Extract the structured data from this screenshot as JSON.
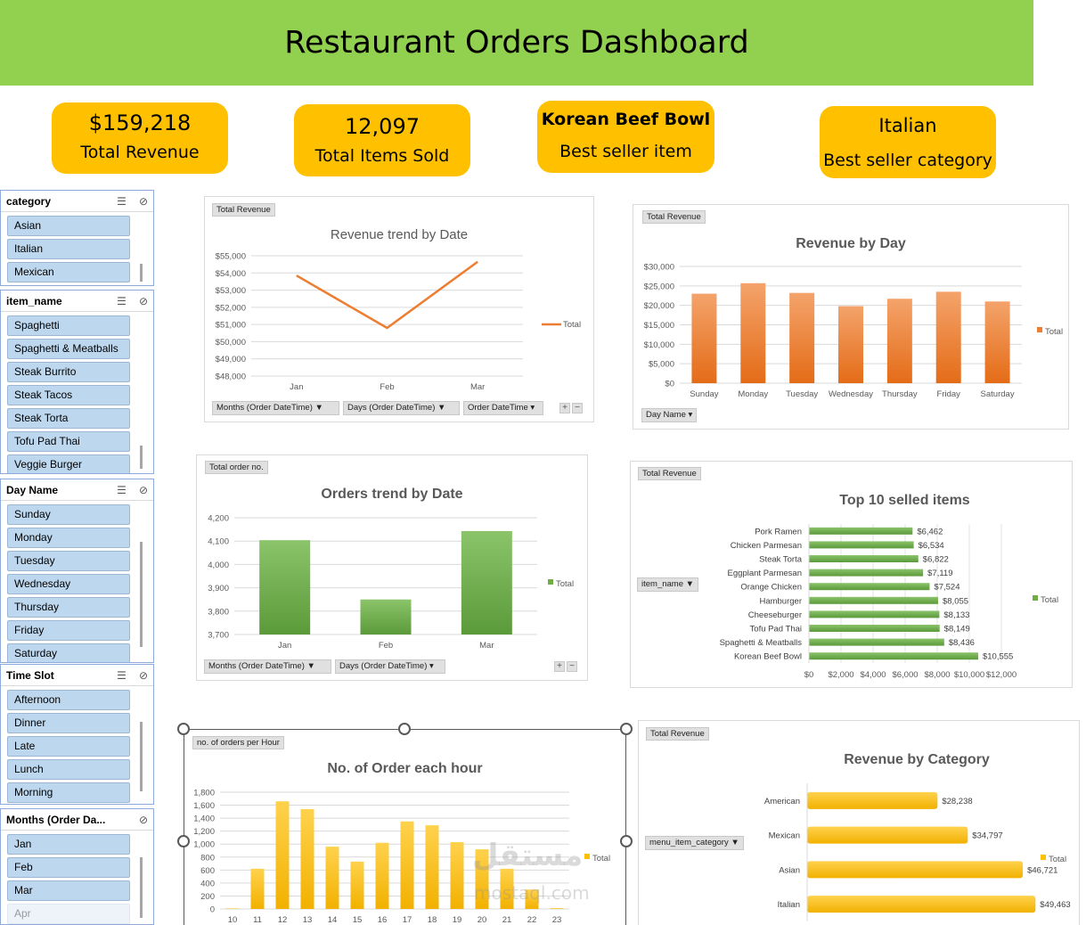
{
  "header": {
    "title": "Restaurant Orders Dashboard"
  },
  "kpis": [
    {
      "value": "$159,218",
      "label": "Total Revenue"
    },
    {
      "value": "12,097",
      "label": "Total Items Sold"
    },
    {
      "value": "Korean Beef Bowl",
      "label": "Best seller item"
    },
    {
      "value": "Italian",
      "label": "Best seller category"
    }
  ],
  "slicers": [
    {
      "title": "category",
      "items": [
        "Asian",
        "Italian",
        "Mexican"
      ]
    },
    {
      "title": "item_name",
      "items": [
        "Spaghetti",
        "Spaghetti & Meatballs",
        "Steak Burrito",
        "Steak Tacos",
        "Steak Torta",
        "Tofu Pad Thai",
        "Veggie Burger"
      ]
    },
    {
      "title": "Day Name",
      "items": [
        "Sunday",
        "Monday",
        "Tuesday",
        "Wednesday",
        "Thursday",
        "Friday",
        "Saturday"
      ]
    },
    {
      "title": "Time Slot",
      "items": [
        "Afternoon",
        "Dinner",
        "Late",
        "Lunch",
        "Morning"
      ]
    },
    {
      "title": "Months (Order Da...",
      "items": [
        "Jan",
        "Feb",
        "Mar",
        "Apr"
      ]
    }
  ],
  "panels": {
    "trend_revenue": {
      "field": "Total Revenue",
      "filters": [
        "Months (Order DateTime)",
        "Days (Order DateTime)",
        "Order DateTime"
      ]
    },
    "revenue_day": {
      "field": "Total Revenue",
      "filters": [
        "Day Name"
      ]
    },
    "orders_trend": {
      "field": "Total order no.",
      "filters": [
        "Months (Order DateTime)",
        "Days (Order DateTime)"
      ]
    },
    "top10": {
      "field": "Total Revenue",
      "filters": [
        "item_name"
      ]
    },
    "orders_hour": {
      "field": "no. of orders per Hour",
      "filters": []
    },
    "rev_category": {
      "field": "Total Revenue",
      "filters": [
        "menu_item_category"
      ]
    }
  },
  "watermark": {
    "text": "mostaql.com",
    "arabic": "مستقل"
  },
  "chart_data": [
    {
      "id": "revenue-trend",
      "type": "line",
      "title": "Revenue trend by Date",
      "categories": [
        "Jan",
        "Feb",
        "Mar"
      ],
      "series": [
        {
          "name": "Total",
          "values": [
            53850,
            50800,
            54650
          ]
        }
      ],
      "ylim": [
        48000,
        55000
      ],
      "yticks": [
        "$48,000",
        "$49,000",
        "$50,000",
        "$51,000",
        "$52,000",
        "$53,000",
        "$54,000",
        "$55,000"
      ],
      "legend": "right",
      "color": "#ed7d31"
    },
    {
      "id": "revenue-by-day",
      "type": "bar",
      "title": "Revenue by Day",
      "categories": [
        "Sunday",
        "Monday",
        "Tuesday",
        "Wednesday",
        "Thursday",
        "Friday",
        "Saturday"
      ],
      "series": [
        {
          "name": "Total",
          "values": [
            23000,
            25700,
            23200,
            19800,
            21700,
            23500,
            21000
          ]
        }
      ],
      "ylim": [
        0,
        30000
      ],
      "yticks": [
        "$0",
        "$5,000",
        "$10,000",
        "$15,000",
        "$20,000",
        "$25,000",
        "$30,000"
      ],
      "legend": "right",
      "color": "#ed7d31"
    },
    {
      "id": "orders-trend",
      "type": "bar",
      "title": "Orders trend by Date",
      "categories": [
        "Jan",
        "Feb",
        "Mar"
      ],
      "series": [
        {
          "name": "Total",
          "values": [
            4104,
            3850,
            4143
          ]
        }
      ],
      "ylim": [
        3700,
        4200
      ],
      "yticks": [
        "3,700",
        "3,800",
        "3,900",
        "4,000",
        "4,100",
        "4,200"
      ],
      "legend": "right",
      "color": "#70ad47"
    },
    {
      "id": "top10-items",
      "type": "bar",
      "orientation": "horizontal",
      "title": "Top 10 selled items",
      "categories": [
        "Pork Ramen",
        "Chicken Parmesan",
        "Steak Torta",
        "Eggplant Parmesan",
        "Orange Chicken",
        "Hamburger",
        "Cheeseburger",
        "Tofu Pad Thai",
        "Spaghetti & Meatballs",
        "Korean Beef Bowl"
      ],
      "series": [
        {
          "name": "Total",
          "values": [
            6462,
            6534,
            6822,
            7119,
            7524,
            8055,
            8133,
            8149,
            8436,
            10555
          ]
        }
      ],
      "data_labels": [
        "$6,462",
        "$6,534",
        "$6,822",
        "$7,119",
        "$7,524",
        "$8,055",
        "$8,133",
        "$8,149",
        "$8,436",
        "$10,555"
      ],
      "xlim": [
        0,
        12000
      ],
      "xticks": [
        "$0",
        "$2,000",
        "$4,000",
        "$6,000",
        "$8,000",
        "$10,000",
        "$12,000"
      ],
      "legend": "right",
      "color": "#70ad47"
    },
    {
      "id": "orders-per-hour",
      "type": "bar",
      "title": "No. of Order each hour",
      "categories": [
        "10",
        "11",
        "12",
        "13",
        "14",
        "15",
        "16",
        "17",
        "18",
        "19",
        "20",
        "21",
        "22",
        "23"
      ],
      "series": [
        {
          "name": "Total",
          "values": [
            8,
            620,
            1660,
            1540,
            960,
            730,
            1020,
            1350,
            1290,
            1030,
            920,
            620,
            300,
            12
          ]
        }
      ],
      "ylim": [
        0,
        1800
      ],
      "yticks": [
        "0",
        "200",
        "400",
        "600",
        "800",
        "1,000",
        "1,200",
        "1,400",
        "1,600",
        "1,800"
      ],
      "legend": "right",
      "color": "#ffc000"
    },
    {
      "id": "revenue-by-category",
      "type": "bar",
      "orientation": "horizontal",
      "title": "Revenue by Category",
      "categories": [
        "American",
        "Mexican",
        "Asian",
        "Italian"
      ],
      "series": [
        {
          "name": "Total",
          "values": [
            28238,
            34797,
            46721,
            49463
          ]
        }
      ],
      "data_labels": [
        "$28,238",
        "$34,797",
        "$46,721",
        "$49,463"
      ],
      "xlim": [
        0,
        55000
      ],
      "legend": "right",
      "color": "#ffc000"
    }
  ]
}
